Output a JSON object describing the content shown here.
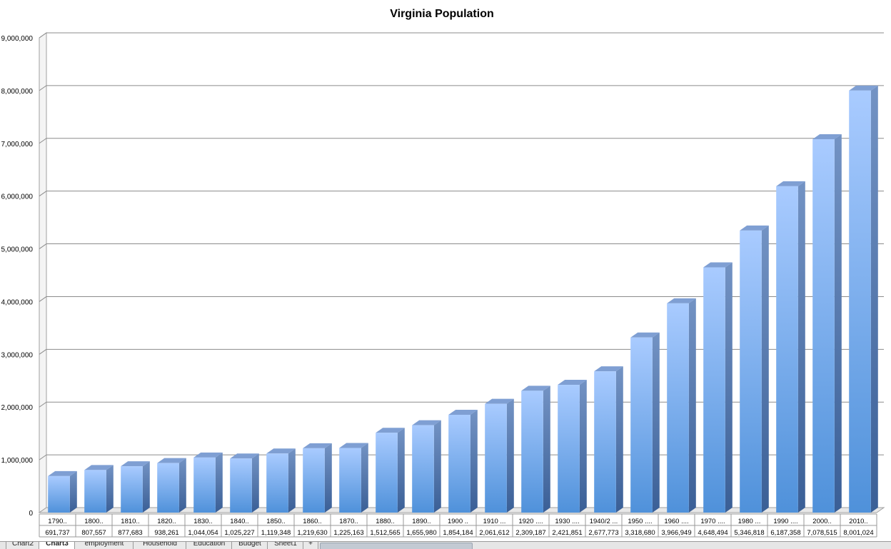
{
  "chart_data": {
    "type": "bar",
    "title": "Virginia Population",
    "categories": [
      "1790..",
      "1800..",
      "1810..",
      "1820..",
      "1830..",
      "1840..",
      "1850..",
      "1860..",
      "1870..",
      "1880..",
      "1890..",
      "1900 ..",
      "1910 ...",
      "1920 ....",
      "1930 ....",
      "1940/2 ...",
      "1950 ....",
      "1960 ....",
      "1970 ....",
      "1980 ...",
      "1990 ....",
      "2000..",
      "2010.."
    ],
    "values": [
      691737,
      807557,
      877683,
      938261,
      1044054,
      1025227,
      1119348,
      1219630,
      1225163,
      1512565,
      1655980,
      1854184,
      2061612,
      2309187,
      2421851,
      2677773,
      3318680,
      3966949,
      4648494,
      5346818,
      6187358,
      7078515,
      8001024
    ],
    "value_labels": [
      "691,737",
      "807,557",
      "877,683",
      "938,261",
      "1,044,054",
      "1,025,227",
      "1,119,348",
      "1,219,630",
      "1,225,163",
      "1,512,565",
      "1,655,980",
      "1,854,184",
      "2,061,612",
      "2,309,187",
      "2,421,851",
      "2,677,773",
      "3,318,680",
      "3,966,949",
      "4,648,494",
      "5,346,818",
      "6,187,358",
      "7,078,515",
      "8,001,024"
    ],
    "ylim": [
      0,
      9000000
    ],
    "yticks": [
      0,
      1000000,
      2000000,
      3000000,
      4000000,
      5000000,
      6000000,
      7000000,
      8000000,
      9000000
    ],
    "ytick_labels": [
      "0",
      "1,000,000",
      "2,000,000",
      "3,000,000",
      "4,000,000",
      "5,000,000",
      "6,000,000",
      "7,000,000",
      "8,000,000",
      "9,000,000"
    ],
    "xlabel": "",
    "ylabel": "",
    "grid": true,
    "bar_color": "#5b9ee8",
    "data_table": true
  },
  "sheet_tabs": [
    {
      "label": "Chart2",
      "active": false
    },
    {
      "label": "Chart3",
      "active": true
    },
    {
      "label": "employment",
      "active": false
    },
    {
      "label": "Household",
      "active": false
    },
    {
      "label": "Education",
      "active": false
    },
    {
      "label": "Budget",
      "active": false
    },
    {
      "label": "Sheet1",
      "active": false
    },
    {
      "label": "+",
      "active": false
    }
  ]
}
